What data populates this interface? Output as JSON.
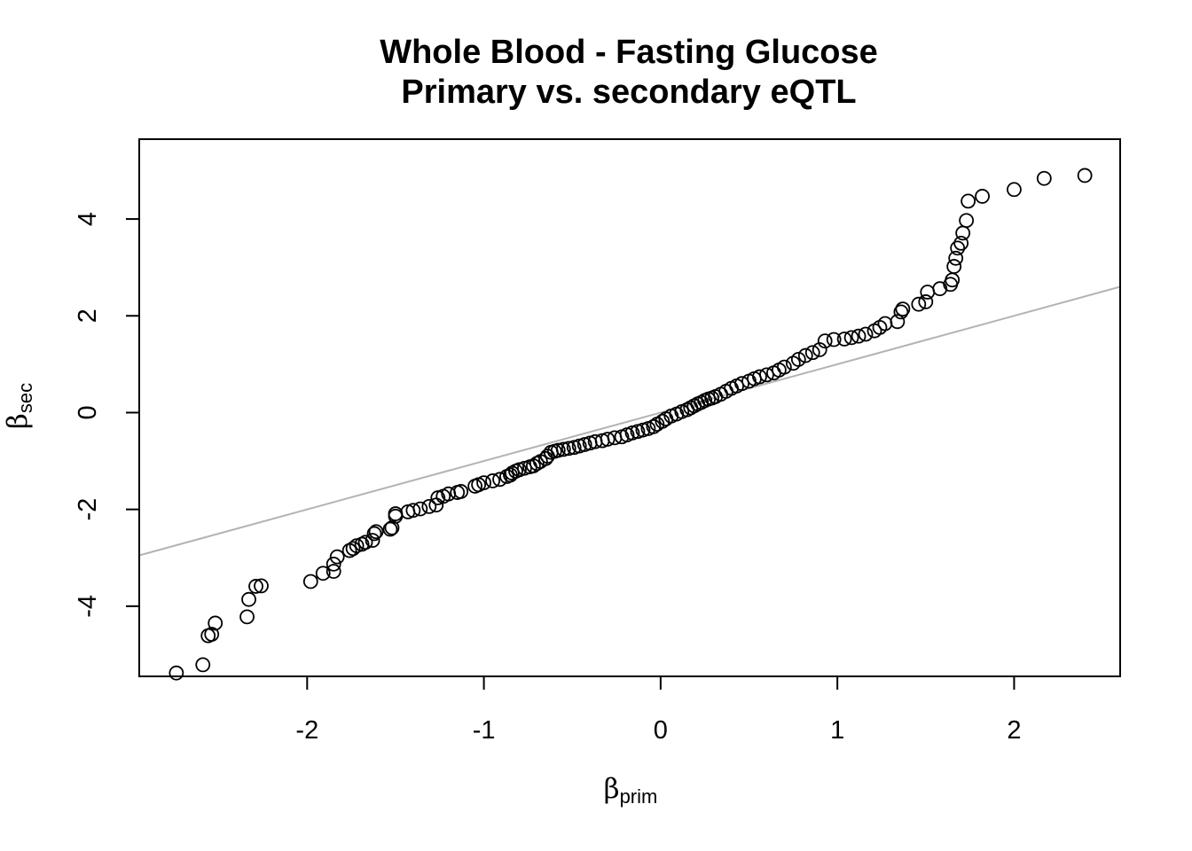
{
  "chart_data": {
    "type": "scatter",
    "title": "Whole Blood - Fasting Glucose",
    "subtitle": "Primary vs. secondary eQTL",
    "xlabel": {
      "symbol": "β",
      "subscript": "prim"
    },
    "ylabel": {
      "symbol": "β",
      "subscript": "sec"
    },
    "xlim": [
      -2.95,
      2.6
    ],
    "ylim": [
      -5.45,
      5.65
    ],
    "xticks": [
      -2,
      -1,
      0,
      1,
      2
    ],
    "xtick_labels": [
      "-2",
      "-1",
      "0",
      "1",
      "2"
    ],
    "yticks": [
      -4,
      -2,
      0,
      2,
      4
    ],
    "ytick_labels": [
      "-4",
      "-2",
      "0",
      "2",
      "4"
    ],
    "grid": false,
    "reference_line": {
      "slope": 1,
      "intercept": 0,
      "color": "#b3b3b3"
    },
    "point_color": "#000000",
    "points": [
      [
        -2.74,
        -5.38
      ],
      [
        -2.59,
        -5.21
      ],
      [
        -2.56,
        -4.61
      ],
      [
        -2.54,
        -4.58
      ],
      [
        -2.52,
        -4.35
      ],
      [
        -2.34,
        -4.22
      ],
      [
        -2.33,
        -3.86
      ],
      [
        -2.29,
        -3.59
      ],
      [
        -2.26,
        -3.58
      ],
      [
        -1.98,
        -3.49
      ],
      [
        -1.91,
        -3.32
      ],
      [
        -1.85,
        -3.28
      ],
      [
        -1.85,
        -3.13
      ],
      [
        -1.83,
        -2.98
      ],
      [
        -1.76,
        -2.85
      ],
      [
        -1.74,
        -2.81
      ],
      [
        -1.72,
        -2.75
      ],
      [
        -1.69,
        -2.72
      ],
      [
        -1.67,
        -2.68
      ],
      [
        -1.63,
        -2.64
      ],
      [
        -1.62,
        -2.5
      ],
      [
        -1.61,
        -2.46
      ],
      [
        -1.53,
        -2.41
      ],
      [
        -1.52,
        -2.38
      ],
      [
        -1.5,
        -2.14
      ],
      [
        -1.5,
        -2.09
      ],
      [
        -1.43,
        -2.05
      ],
      [
        -1.4,
        -2.02
      ],
      [
        -1.36,
        -1.99
      ],
      [
        -1.31,
        -1.94
      ],
      [
        -1.27,
        -1.91
      ],
      [
        -1.26,
        -1.76
      ],
      [
        -1.23,
        -1.73
      ],
      [
        -1.2,
        -1.68
      ],
      [
        -1.15,
        -1.65
      ],
      [
        -1.13,
        -1.63
      ],
      [
        -1.05,
        -1.52
      ],
      [
        -1.03,
        -1.49
      ],
      [
        -1.0,
        -1.45
      ],
      [
        -0.95,
        -1.41
      ],
      [
        -0.91,
        -1.38
      ],
      [
        -0.87,
        -1.32
      ],
      [
        -0.85,
        -1.29
      ],
      [
        -0.84,
        -1.25
      ],
      [
        -0.82,
        -1.21
      ],
      [
        -0.8,
        -1.18
      ],
      [
        -0.77,
        -1.15
      ],
      [
        -0.74,
        -1.12
      ],
      [
        -0.72,
        -1.1
      ],
      [
        -0.7,
        -1.05
      ],
      [
        -0.68,
        -1.01
      ],
      [
        -0.65,
        -0.95
      ],
      [
        -0.64,
        -0.9
      ],
      [
        -0.62,
        -0.82
      ],
      [
        -0.6,
        -0.8
      ],
      [
        -0.58,
        -0.78
      ],
      [
        -0.55,
        -0.76
      ],
      [
        -0.52,
        -0.74
      ],
      [
        -0.49,
        -0.72
      ],
      [
        -0.46,
        -0.69
      ],
      [
        -0.43,
        -0.66
      ],
      [
        -0.4,
        -0.63
      ],
      [
        -0.37,
        -0.6
      ],
      [
        -0.33,
        -0.58
      ],
      [
        -0.3,
        -0.55
      ],
      [
        -0.26,
        -0.52
      ],
      [
        -0.22,
        -0.5
      ],
      [
        -0.19,
        -0.46
      ],
      [
        -0.16,
        -0.42
      ],
      [
        -0.13,
        -0.39
      ],
      [
        -0.1,
        -0.36
      ],
      [
        -0.07,
        -0.33
      ],
      [
        -0.04,
        -0.29
      ],
      [
        -0.02,
        -0.24
      ],
      [
        0.01,
        -0.18
      ],
      [
        0.03,
        -0.13
      ],
      [
        0.06,
        -0.07
      ],
      [
        0.09,
        -0.03
      ],
      [
        0.12,
        0.02
      ],
      [
        0.15,
        0.06
      ],
      [
        0.17,
        0.1
      ],
      [
        0.19,
        0.14
      ],
      [
        0.21,
        0.18
      ],
      [
        0.23,
        0.21
      ],
      [
        0.25,
        0.25
      ],
      [
        0.27,
        0.28
      ],
      [
        0.29,
        0.3
      ],
      [
        0.31,
        0.33
      ],
      [
        0.34,
        0.38
      ],
      [
        0.37,
        0.44
      ],
      [
        0.4,
        0.5
      ],
      [
        0.43,
        0.55
      ],
      [
        0.46,
        0.6
      ],
      [
        0.5,
        0.65
      ],
      [
        0.53,
        0.7
      ],
      [
        0.56,
        0.74
      ],
      [
        0.6,
        0.78
      ],
      [
        0.64,
        0.82
      ],
      [
        0.67,
        0.88
      ],
      [
        0.7,
        0.94
      ],
      [
        0.75,
        1.02
      ],
      [
        0.78,
        1.1
      ],
      [
        0.82,
        1.18
      ],
      [
        0.86,
        1.24
      ],
      [
        0.9,
        1.3
      ],
      [
        0.93,
        1.48
      ],
      [
        0.98,
        1.51
      ],
      [
        1.04,
        1.52
      ],
      [
        1.08,
        1.55
      ],
      [
        1.12,
        1.58
      ],
      [
        1.16,
        1.62
      ],
      [
        1.21,
        1.69
      ],
      [
        1.24,
        1.76
      ],
      [
        1.27,
        1.84
      ],
      [
        1.34,
        1.88
      ],
      [
        1.36,
        2.08
      ],
      [
        1.37,
        2.14
      ],
      [
        1.46,
        2.24
      ],
      [
        1.5,
        2.29
      ],
      [
        1.51,
        2.49
      ],
      [
        1.58,
        2.56
      ],
      [
        1.64,
        2.65
      ],
      [
        1.65,
        2.74
      ],
      [
        1.66,
        3.02
      ],
      [
        1.67,
        3.19
      ],
      [
        1.68,
        3.4
      ],
      [
        1.7,
        3.5
      ],
      [
        1.71,
        3.71
      ],
      [
        1.73,
        3.97
      ],
      [
        1.74,
        4.37
      ],
      [
        1.82,
        4.47
      ],
      [
        2.0,
        4.61
      ],
      [
        2.17,
        4.84
      ],
      [
        2.4,
        4.9
      ]
    ]
  }
}
